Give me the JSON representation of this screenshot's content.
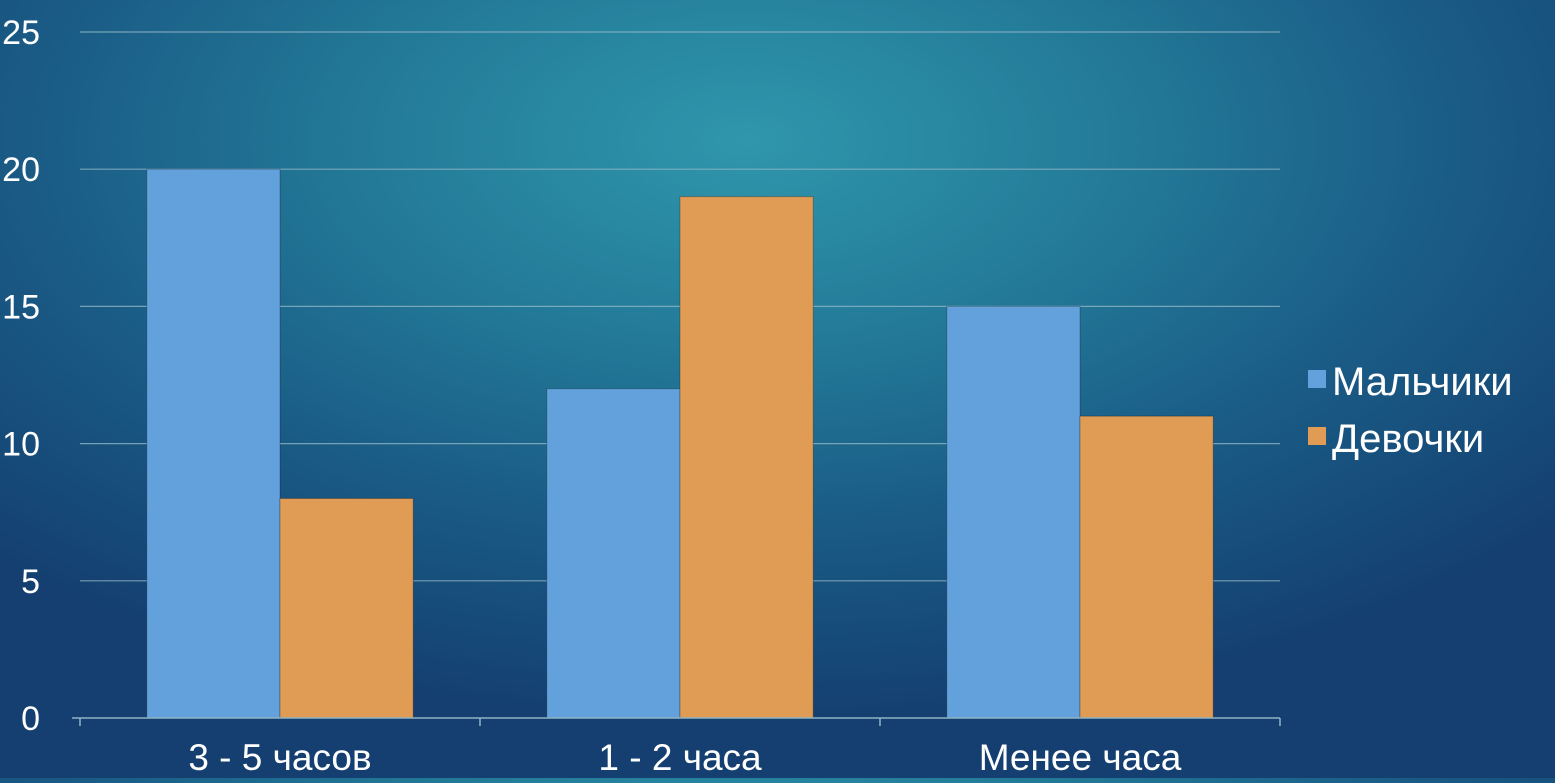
{
  "chart_data": {
    "type": "bar",
    "categories": [
      "3 - 5 часов",
      "1 - 2 часа",
      "Менее часа"
    ],
    "series": [
      {
        "name": "Мальчики",
        "values": [
          20,
          12,
          15
        ],
        "color": "#62a1dc"
      },
      {
        "name": "Девочки",
        "values": [
          8,
          19,
          11
        ],
        "color": "#e09b55"
      }
    ],
    "title": "",
    "xlabel": "",
    "ylabel": "",
    "ylim": [
      0,
      25
    ],
    "yticks": [
      "0",
      "5",
      "10",
      "15",
      "20",
      "25"
    ],
    "grid": true,
    "legend_position": "right",
    "background_color": "#1f6f92",
    "gridline_color": "#8fb4c4",
    "text_color": "#ffffff"
  }
}
